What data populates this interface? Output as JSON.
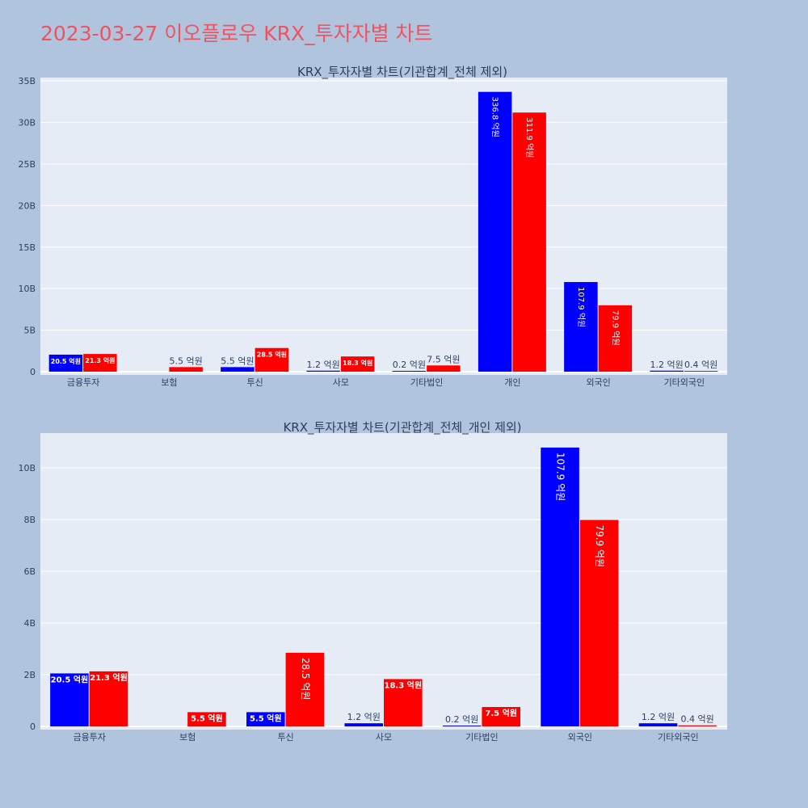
{
  "page": {
    "title": "2023-03-27 이오플로우 KRX_투자자별 차트"
  },
  "colors": {
    "buy": "#0000ff",
    "sell": "#ff0000",
    "plot_bg": "#e5ecf6",
    "paper_bg": "#b0c4de",
    "title": "#ef5360"
  },
  "chart_data": [
    {
      "type": "bar",
      "title": "KRX_투자자별 차트(기관합계_전체 제외)",
      "xlabel": "",
      "ylabel": "",
      "categories": [
        "금융투자",
        "보험",
        "투신",
        "사모",
        "기타법인",
        "개인",
        "외국인",
        "기타외국인"
      ],
      "yticks": [
        {
          "value": 0,
          "label": "0"
        },
        {
          "value": 5000000000,
          "label": "5B"
        },
        {
          "value": 10000000000,
          "label": "10B"
        },
        {
          "value": 15000000000,
          "label": "15B"
        },
        {
          "value": 20000000000,
          "label": "20B"
        },
        {
          "value": 25000000000,
          "label": "25B"
        },
        {
          "value": 30000000000,
          "label": "30B"
        },
        {
          "value": 35000000000,
          "label": "35B"
        }
      ],
      "ylim": [
        0,
        35400000000
      ],
      "grid": true,
      "series": [
        {
          "color": "#0000ff",
          "values": [
            2050000000,
            0,
            550000000,
            120000000,
            20000000,
            33680000000,
            10790000000,
            120000000
          ],
          "labels": [
            "20.5 억원",
            "",
            "5.5 억원",
            "1.2 억원",
            "0.2 억원",
            "336.8 억원",
            "107.9 억원",
            "1.2 억원"
          ]
        },
        {
          "color": "#ff0000",
          "values": [
            2130000000,
            550000000,
            2850000000,
            1830000000,
            750000000,
            31190000000,
            7990000000,
            40000000
          ],
          "labels": [
            "21.3 억원",
            "5.5 억원",
            "28.5 억원",
            "18.3 억원",
            "7.5 억원",
            "311.9 억원",
            "79.9 억원",
            "0.4 억원"
          ]
        }
      ]
    },
    {
      "type": "bar",
      "title": "KRX_투자자별 차트(기관합계_전체_개인 제외)",
      "xlabel": "",
      "ylabel": "",
      "categories": [
        "금융투자",
        "보험",
        "투신",
        "사모",
        "기타법인",
        "외국인",
        "기타외국인"
      ],
      "yticks": [
        {
          "value": 0,
          "label": "0"
        },
        {
          "value": 2000000000,
          "label": "2B"
        },
        {
          "value": 4000000000,
          "label": "4B"
        },
        {
          "value": 6000000000,
          "label": "6B"
        },
        {
          "value": 8000000000,
          "label": "8B"
        },
        {
          "value": 10000000000,
          "label": "10B"
        }
      ],
      "ylim": [
        0,
        11350000000
      ],
      "grid": true,
      "series": [
        {
          "color": "#0000ff",
          "values": [
            2050000000,
            0,
            550000000,
            120000000,
            20000000,
            10790000000,
            120000000
          ],
          "labels": [
            "20.5 억원",
            "",
            "5.5 억원",
            "1.2 억원",
            "0.2 억원",
            "107.9 억원",
            "1.2 억원"
          ]
        },
        {
          "color": "#ff0000",
          "values": [
            2130000000,
            550000000,
            2850000000,
            1830000000,
            750000000,
            7990000000,
            40000000
          ],
          "labels": [
            "21.3 억원",
            "5.5 억원",
            "28.5 억원",
            "18.3 억원",
            "7.5 억원",
            "79.9 억원",
            "0.4 억원"
          ]
        }
      ]
    }
  ]
}
